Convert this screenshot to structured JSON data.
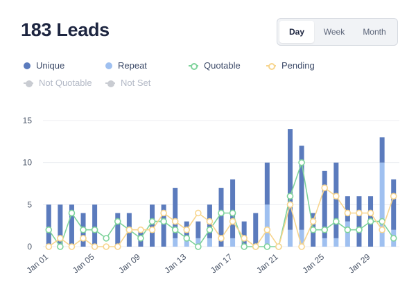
{
  "header": {
    "title": "183 Leads"
  },
  "range_selector": {
    "options": [
      {
        "label": "Day",
        "active": true
      },
      {
        "label": "Week",
        "active": false
      },
      {
        "label": "Month",
        "active": false
      }
    ]
  },
  "legend": {
    "items": [
      {
        "label": "Unique",
        "color": "#5b7bbd",
        "style": "dot",
        "muted": false
      },
      {
        "label": "Repeat",
        "color": "#9fc0f0",
        "style": "dot",
        "muted": false
      },
      {
        "label": "Quotable",
        "color": "#7fd39b",
        "style": "line",
        "muted": false
      },
      {
        "label": "Pending",
        "color": "#f7d58e",
        "style": "line",
        "muted": false
      },
      {
        "label": "Not Quotable",
        "color": "#c9ccd2",
        "style": "line",
        "muted": true
      },
      {
        "label": "Not Set",
        "color": "#c9ccd2",
        "style": "line",
        "muted": true
      }
    ]
  },
  "chart_data": {
    "type": "bar",
    "stacked": true,
    "title": "",
    "xlabel": "",
    "ylabel": "",
    "ylim": [
      0,
      15
    ],
    "yticks": [
      0,
      5,
      10,
      15
    ],
    "grid": true,
    "legend_position": "top",
    "categories": [
      "Jan 01",
      "Jan 02",
      "Jan 03",
      "Jan 04",
      "Jan 05",
      "Jan 06",
      "Jan 07",
      "Jan 08",
      "Jan 09",
      "Jan 10",
      "Jan 11",
      "Jan 12",
      "Jan 13",
      "Jan 14",
      "Jan 15",
      "Jan 16",
      "Jan 17",
      "Jan 18",
      "Jan 19",
      "Jan 20",
      "Jan 21",
      "Jan 22",
      "Jan 23",
      "Jan 24",
      "Jan 25",
      "Jan 26",
      "Jan 27",
      "Jan 28",
      "Jan 29",
      "Jan 30",
      "Jan 31"
    ],
    "tick_labels": [
      "Jan 01",
      "Jan 05",
      "Jan 09",
      "Jan 13",
      "Jan 17",
      "Jan 21",
      "Jan 25",
      "Jan 29"
    ],
    "tick_indices": [
      0,
      4,
      8,
      12,
      16,
      20,
      24,
      28
    ],
    "series": [
      {
        "name": "Unique",
        "kind": "bar",
        "color": "#5b7bbd",
        "values": [
          5,
          5,
          5,
          4,
          5,
          0,
          4,
          4,
          2,
          5,
          5,
          6,
          2,
          2,
          4,
          7,
          7,
          3,
          4,
          5,
          0,
          12,
          10,
          4,
          8,
          9,
          3,
          6,
          6,
          3,
          6
        ]
      },
      {
        "name": "Repeat",
        "kind": "bar",
        "color": "#9fc0f0",
        "values": [
          0,
          0,
          0,
          0,
          0,
          0,
          0,
          0,
          0,
          0,
          0,
          1,
          1,
          1,
          1,
          0,
          1,
          0,
          0,
          5,
          0,
          2,
          2,
          0,
          1,
          1,
          3,
          0,
          0,
          10,
          2
        ]
      },
      {
        "name": "Quotable",
        "kind": "line",
        "color": "#7fd39b",
        "values": [
          2,
          0,
          4,
          2,
          2,
          1,
          3,
          2,
          1,
          3,
          3,
          2,
          1,
          0,
          2,
          4,
          4,
          0,
          0,
          0,
          0,
          6,
          10,
          2,
          2,
          3,
          2,
          2,
          3,
          3,
          1
        ]
      },
      {
        "name": "Pending",
        "kind": "line",
        "color": "#f7d58e",
        "values": [
          0,
          1,
          0,
          1,
          0,
          0,
          0,
          2,
          2,
          2,
          4,
          3,
          2,
          4,
          3,
          1,
          3,
          1,
          0,
          2,
          0,
          5,
          0,
          3,
          7,
          6,
          4,
          4,
          4,
          2,
          6
        ]
      }
    ]
  }
}
